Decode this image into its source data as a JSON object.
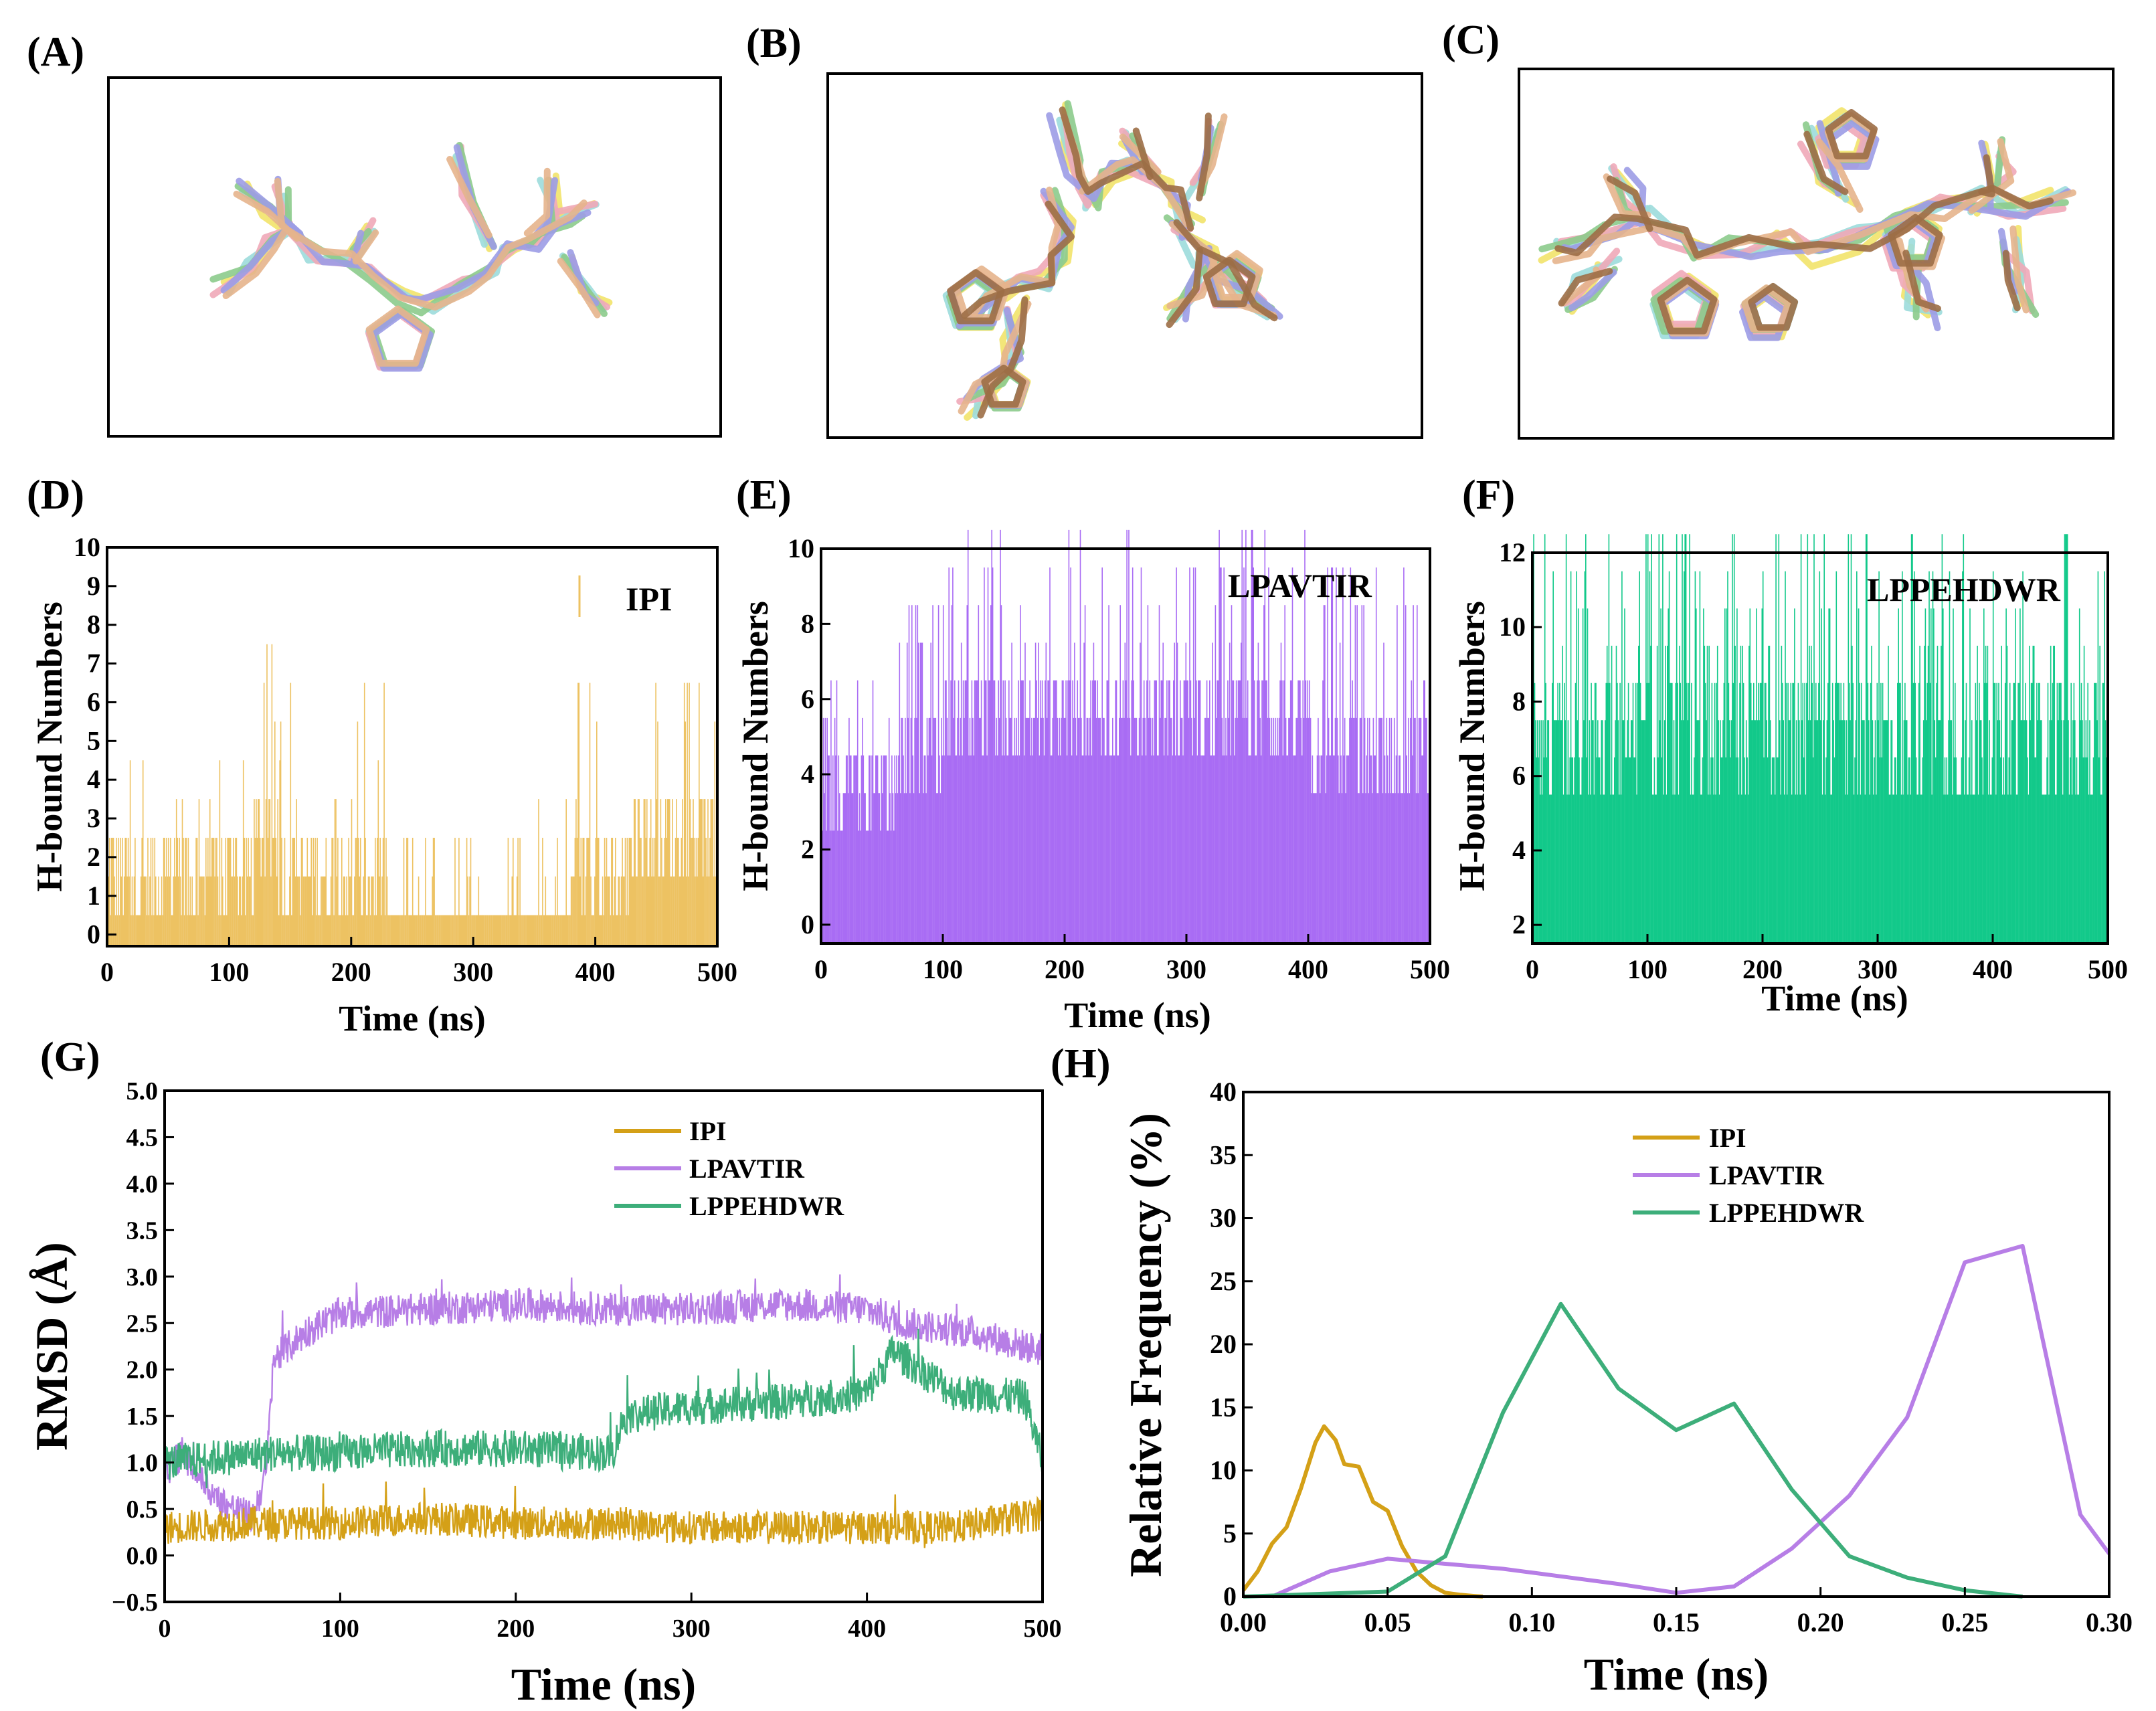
{
  "figure": {
    "panel_labels": [
      "(A)",
      "(B)",
      "(C)",
      "(D)",
      "(E)",
      "(F)",
      "(G)",
      "(H)"
    ]
  },
  "colors": {
    "IPI": "#D4A017",
    "IPI_hbond": "#EDC262",
    "LPAVTIR": "#B77EE6",
    "LPAVTIR_hbond": "#A96CF4",
    "LPPEHDWR": "#3DAE7A",
    "LPPEHDWR_hbond": "#12C98A",
    "mol_yellow": "#F2E36A",
    "mol_cyan": "#9CDCDC",
    "mol_pink": "#F0A8B8",
    "mol_green": "#8CCB8C",
    "mol_lavender": "#9C9CE6",
    "mol_tan": "#E6B48C",
    "mol_brown": "#9C6E46",
    "mol_olive": "#8C8C3C"
  },
  "chart_data": [
    {
      "id": "D",
      "type": "bar",
      "title": "IPI",
      "xlabel": "Time (ns)",
      "ylabel": "H-bound Numbers",
      "xlim": [
        0,
        500
      ],
      "ylim": [
        -0.3,
        10
      ],
      "xticks": [
        0,
        100,
        200,
        300,
        400,
        500
      ],
      "yticks": [
        0,
        1,
        2,
        3,
        4,
        5,
        6,
        7,
        8,
        9,
        10
      ],
      "segments": [
        {
          "x": [
            0,
            60
          ],
          "base": [
            0,
            1,
            2
          ],
          "max": 5
        },
        {
          "x": [
            60,
            120
          ],
          "base": [
            0,
            1,
            2
          ],
          "max": 4
        },
        {
          "x": [
            120,
            140
          ],
          "base": [
            1,
            2,
            3
          ],
          "max": 7
        },
        {
          "x": [
            140,
            230
          ],
          "base": [
            0,
            1,
            2
          ],
          "max": 6
        },
        {
          "x": [
            230,
            340
          ],
          "base": [
            0
          ],
          "max": 2
        },
        {
          "x": [
            340,
            380
          ],
          "base": [
            0
          ],
          "max": 3
        },
        {
          "x": [
            380,
            430
          ],
          "base": [
            0,
            1,
            2
          ],
          "max": 6
        },
        {
          "x": [
            430,
            500
          ],
          "base": [
            1,
            2,
            3
          ],
          "max": 6
        }
      ]
    },
    {
      "id": "E",
      "type": "bar",
      "title": "LPAVTIR",
      "xlabel": "Time (ns)",
      "ylabel": "H-bound Numbers",
      "xlim": [
        0,
        500
      ],
      "ylim": [
        -0.5,
        10
      ],
      "xticks": [
        0,
        100,
        200,
        300,
        400,
        500
      ],
      "yticks": [
        0,
        2,
        4,
        6,
        8,
        10
      ],
      "segments": [
        {
          "x": [
            0,
            60
          ],
          "base": [
            2,
            3,
            4
          ],
          "max": 6
        },
        {
          "x": [
            60,
            100
          ],
          "base": [
            3,
            4,
            5
          ],
          "max": 8
        },
        {
          "x": [
            100,
            400
          ],
          "base": [
            4,
            5,
            6
          ],
          "max": 10
        },
        {
          "x": [
            400,
            500
          ],
          "base": [
            3,
            4,
            5
          ],
          "max": 9
        }
      ]
    },
    {
      "id": "F",
      "type": "bar",
      "title": "LPPEHDWR",
      "xlabel": "Time (ns)",
      "ylabel": "H-bound Numbers",
      "xlim": [
        0,
        500
      ],
      "ylim": [
        1.5,
        12
      ],
      "xticks": [
        0,
        100,
        200,
        300,
        400,
        500
      ],
      "yticks": [
        2,
        4,
        6,
        8,
        10,
        12
      ],
      "segments": [
        {
          "x": [
            0,
            500
          ],
          "base": [
            5,
            6,
            7,
            8
          ],
          "max": 12
        }
      ]
    },
    {
      "id": "G",
      "type": "line",
      "xlabel": "Time (ns)",
      "ylabel": "RMSD (Å)",
      "xlim": [
        0,
        500
      ],
      "ylim": [
        -0.5,
        5.0
      ],
      "xticks": [
        0,
        100,
        200,
        300,
        400,
        500
      ],
      "yticks": [
        "−0.5",
        "0.0",
        "0.5",
        "1.0",
        "1.5",
        "2.0",
        "2.5",
        "3.0",
        "3.5",
        "4.0",
        "4.5",
        "5.0"
      ],
      "series": [
        {
          "name": "IPI",
          "x": [
            0,
            50,
            100,
            150,
            200,
            250,
            300,
            350,
            400,
            450,
            500
          ],
          "values": [
            0.3,
            0.35,
            0.35,
            0.4,
            0.35,
            0.35,
            0.3,
            0.3,
            0.3,
            0.3,
            0.45
          ],
          "noise": 0.18
        },
        {
          "name": "LPAVTIR",
          "x": [
            0,
            10,
            30,
            50,
            58,
            62,
            80,
            100,
            150,
            200,
            250,
            300,
            350,
            400,
            420,
            460,
            500
          ],
          "values": [
            0.9,
            1.1,
            0.6,
            0.4,
            0.9,
            2.1,
            2.4,
            2.6,
            2.65,
            2.7,
            2.65,
            2.65,
            2.7,
            2.65,
            2.5,
            2.4,
            2.2
          ],
          "noise": 0.18
        },
        {
          "name": "LPPEHDWR",
          "x": [
            0,
            30,
            60,
            100,
            150,
            200,
            255,
            262,
            300,
            350,
            400,
            415,
            450,
            490,
            500
          ],
          "values": [
            1.0,
            1.05,
            1.1,
            1.1,
            1.15,
            1.15,
            1.1,
            1.5,
            1.6,
            1.65,
            1.75,
            2.2,
            1.75,
            1.7,
            1.0
          ],
          "noise": 0.2
        }
      ]
    },
    {
      "id": "H",
      "type": "line",
      "xlabel": "Time (ns)",
      "ylabel": "Relative Frequency (%)",
      "xlim": [
        0,
        0.3
      ],
      "ylim": [
        0,
        40
      ],
      "xticks": [
        "0.00",
        "0.05",
        "0.10",
        "0.15",
        "0.20",
        "0.25",
        "0.30"
      ],
      "yticks": [
        0,
        5,
        10,
        15,
        20,
        25,
        30,
        35,
        40
      ],
      "series": [
        {
          "name": "IPI",
          "x": [
            0.0,
            0.005,
            0.01,
            0.015,
            0.02,
            0.025,
            0.028,
            0.032,
            0.035,
            0.04,
            0.045,
            0.05,
            0.055,
            0.06,
            0.065,
            0.07,
            0.075,
            0.08,
            0.083
          ],
          "values": [
            0.5,
            2.0,
            4.2,
            5.5,
            8.6,
            12.2,
            13.5,
            12.4,
            10.5,
            10.3,
            7.5,
            6.8,
            4.0,
            2.0,
            0.9,
            0.3,
            0.15,
            0.05,
            0.0
          ]
        },
        {
          "name": "LPAVTIR",
          "x": [
            0.01,
            0.03,
            0.05,
            0.07,
            0.09,
            0.11,
            0.13,
            0.15,
            0.17,
            0.19,
            0.21,
            0.23,
            0.25,
            0.27,
            0.29,
            0.3
          ],
          "values": [
            0.0,
            2.0,
            3.0,
            2.6,
            2.2,
            1.6,
            1.0,
            0.3,
            0.8,
            3.8,
            8.0,
            14.2,
            26.5,
            27.8,
            6.5,
            3.4
          ]
        },
        {
          "name": "LPPEHDWR",
          "x": [
            0.0,
            0.05,
            0.07,
            0.09,
            0.11,
            0.13,
            0.15,
            0.17,
            0.19,
            0.21,
            0.23,
            0.25,
            0.27
          ],
          "values": [
            0.0,
            0.4,
            3.2,
            14.6,
            23.2,
            16.5,
            13.2,
            15.3,
            8.5,
            3.2,
            1.5,
            0.5,
            0.0
          ]
        }
      ]
    }
  ]
}
